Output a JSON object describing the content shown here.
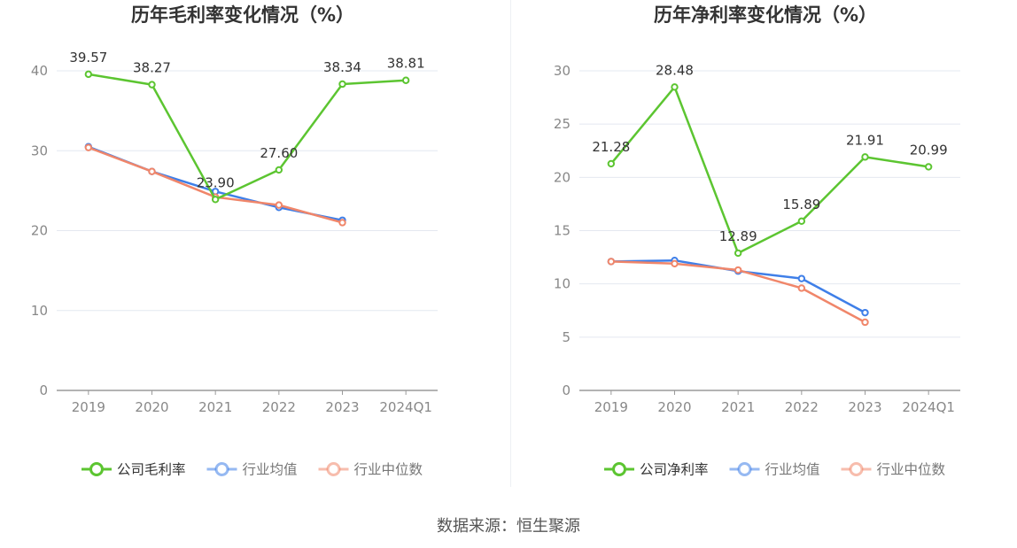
{
  "colors": {
    "company": "#5cc531",
    "industry_avg": "#3f7fe8",
    "industry_median": "#f0866a",
    "grid": "#e4e8f0",
    "axis": "#9a9a9a"
  },
  "source": "数据来源：恒生聚源",
  "chart_data": [
    {
      "type": "line",
      "title": "历年毛利率变化情况（%）",
      "categories": [
        "2019",
        "2020",
        "2021",
        "2022",
        "2023",
        "2024Q1"
      ],
      "ylim": [
        0,
        40
      ],
      "yticks": [
        0,
        10,
        20,
        30,
        40
      ],
      "grid": true,
      "legend_position": "bottom",
      "series": [
        {
          "name": "公司毛利率",
          "role": "company",
          "values": [
            39.57,
            38.27,
            23.9,
            27.6,
            38.34,
            38.81
          ],
          "labels": [
            "39.57",
            "38.27",
            "23.90",
            "27.60",
            "38.34",
            "38.81"
          ]
        },
        {
          "name": "行业均值",
          "role": "industry_avg",
          "values": [
            30.5,
            27.4,
            24.9,
            22.9,
            21.3,
            null
          ]
        },
        {
          "name": "行业中位数",
          "role": "industry_median",
          "values": [
            30.4,
            27.4,
            24.2,
            23.2,
            21.0,
            null
          ]
        }
      ]
    },
    {
      "type": "line",
      "title": "历年净利率变化情况（%）",
      "categories": [
        "2019",
        "2020",
        "2021",
        "2022",
        "2023",
        "2024Q1"
      ],
      "ylim": [
        0,
        30
      ],
      "yticks": [
        0,
        5,
        10,
        15,
        20,
        25,
        30
      ],
      "grid": true,
      "legend_position": "bottom",
      "series": [
        {
          "name": "公司净利率",
          "role": "company",
          "values": [
            21.28,
            28.48,
            12.89,
            15.89,
            21.91,
            20.99
          ],
          "labels": [
            "21.28",
            "28.48",
            "12.89",
            "15.89",
            "21.91",
            "20.99"
          ]
        },
        {
          "name": "行业均值",
          "role": "industry_avg",
          "values": [
            12.1,
            12.2,
            11.2,
            10.5,
            7.3,
            null
          ]
        },
        {
          "name": "行业中位数",
          "role": "industry_median",
          "values": [
            12.1,
            11.9,
            11.3,
            9.6,
            6.4,
            null
          ]
        }
      ]
    }
  ]
}
